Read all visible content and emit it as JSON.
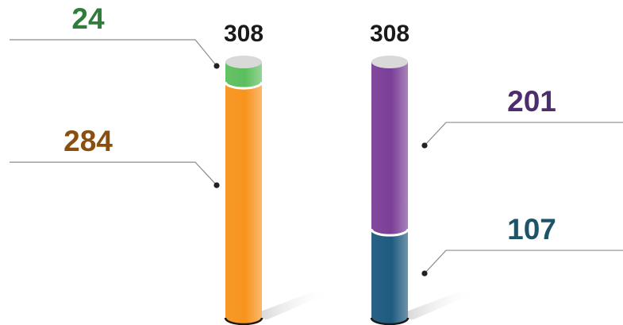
{
  "chart_data": {
    "type": "bar",
    "stacked": true,
    "style": "3d-cylinder",
    "legend": "none",
    "grid": false,
    "title": "",
    "xlabel": "",
    "ylabel": "",
    "ylim": [
      0,
      308
    ],
    "bars": [
      {
        "total_label": "308",
        "segments": [
          {
            "value": 284,
            "label": "284",
            "color": "#f7941d",
            "label_color": "#8a4f0e",
            "callout_side": "left"
          },
          {
            "value": 24,
            "label": "24",
            "color": "#5cbf5e",
            "label_color": "#2e7d3a",
            "callout_side": "left"
          }
        ]
      },
      {
        "total_label": "308",
        "segments": [
          {
            "value": 107,
            "label": "107",
            "color": "#1f5a80",
            "label_color": "#1d5468",
            "callout_side": "right"
          },
          {
            "value": 201,
            "label": "201",
            "color": "#7b3f98",
            "label_color": "#4e2d6e",
            "callout_side": "right"
          }
        ]
      }
    ]
  },
  "colors": {
    "cap": "#d9d9d9",
    "separator": "#ffffff",
    "total_label": "#1a1a1a",
    "callout_line": "#8c8c8c",
    "dot": "#222222",
    "shadow": "#bdbdbd"
  }
}
